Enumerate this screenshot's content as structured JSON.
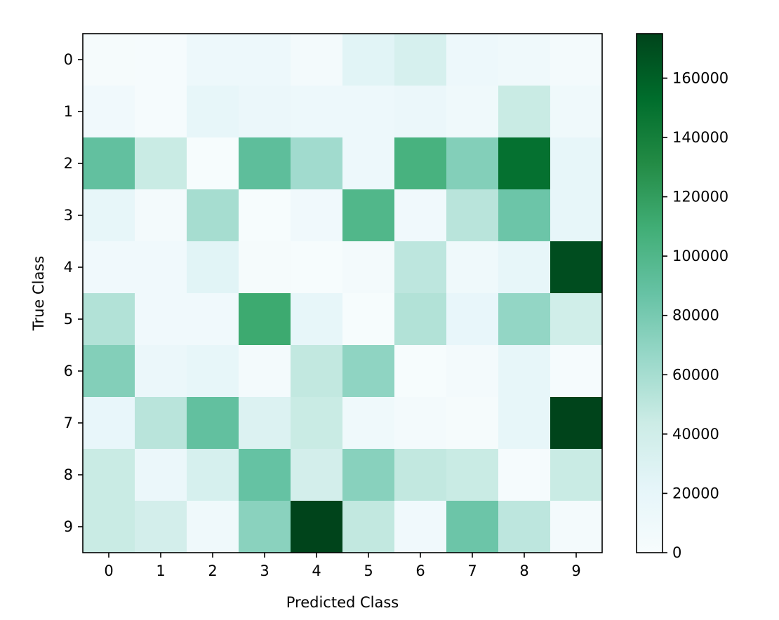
{
  "chart_data": {
    "type": "heatmap",
    "title": "",
    "xlabel": "Predicted Class",
    "ylabel": "True Class",
    "x_categories": [
      "0",
      "1",
      "2",
      "3",
      "4",
      "5",
      "6",
      "7",
      "8",
      "9"
    ],
    "y_categories": [
      "0",
      "1",
      "2",
      "3",
      "4",
      "5",
      "6",
      "7",
      "8",
      "9"
    ],
    "values": [
      [
        3000,
        2000,
        12000,
        12000,
        5000,
        25000,
        35000,
        12000,
        10000,
        5000
      ],
      [
        8000,
        2000,
        20000,
        15000,
        12000,
        12000,
        15000,
        10000,
        45000,
        10000
      ],
      [
        90000,
        45000,
        1000,
        92000,
        62000,
        12000,
        105000,
        75000,
        150000,
        20000
      ],
      [
        20000,
        5000,
        60000,
        1000,
        8000,
        100000,
        8000,
        52000,
        85000,
        20000
      ],
      [
        8000,
        8000,
        25000,
        3000,
        1000,
        5000,
        50000,
        10000,
        20000,
        170000
      ],
      [
        55000,
        8000,
        8000,
        112000,
        20000,
        1000,
        55000,
        18000,
        68000,
        40000
      ],
      [
        75000,
        15000,
        20000,
        5000,
        48000,
        70000,
        1000,
        5000,
        20000,
        2000
      ],
      [
        18000,
        52000,
        90000,
        30000,
        45000,
        10000,
        5000,
        3000,
        20000,
        175000
      ],
      [
        45000,
        15000,
        35000,
        88000,
        38000,
        73000,
        48000,
        45000,
        2000,
        45000
      ],
      [
        45000,
        38000,
        10000,
        72000,
        185000,
        48000,
        8000,
        85000,
        50000,
        5000
      ]
    ],
    "colorbar": {
      "min": 0,
      "max": 175000,
      "ticks": [
        "0",
        "20000",
        "40000",
        "60000",
        "80000",
        "100000",
        "120000",
        "140000",
        "160000"
      ],
      "tick_values": [
        0,
        20000,
        40000,
        60000,
        80000,
        100000,
        120000,
        140000,
        160000
      ]
    },
    "colormap": "BuGn",
    "colormap_stops": [
      "#f7fcfd",
      "#e5f5f9",
      "#ccece6",
      "#99d8c9",
      "#66c2a4",
      "#41ae76",
      "#238b45",
      "#006d2c",
      "#00441b"
    ],
    "grid": false
  }
}
